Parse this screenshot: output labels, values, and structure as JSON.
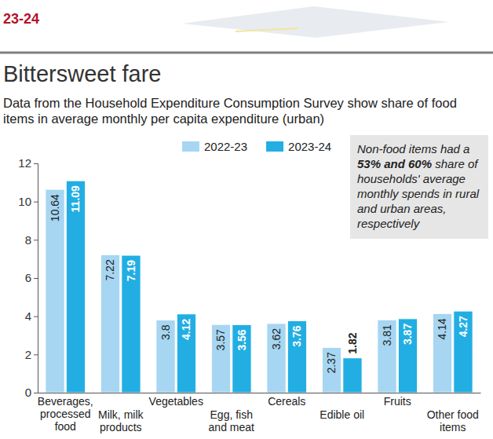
{
  "chart_data": {
    "type": "bar",
    "header": "23-24",
    "title": "Bittersweet fare",
    "subtitle": "Data from the Household Expenditure Consumption Survey show share of food items in average monthly per capita expenditure (urban)",
    "annotation": [
      "Non-food items had a",
      "53% and 60%",
      "share of households' average monthly spends in rural and urban areas, respectively"
    ],
    "categories": [
      "Beverages, processed food",
      "Milk, milk products",
      "Vegetables",
      "Egg, fish and meat",
      "Cereals",
      "Edible oil",
      "Fruits",
      "Other food items"
    ],
    "series": [
      {
        "name": "2022-23",
        "color": "#a6d6f2",
        "values": [
          10.64,
          7.22,
          3.8,
          3.57,
          3.62,
          2.37,
          3.81,
          4.14
        ]
      },
      {
        "name": "2023-24",
        "color": "#22aee3",
        "values": [
          11.09,
          7.19,
          4.12,
          3.56,
          3.76,
          1.82,
          3.87,
          4.27
        ]
      }
    ],
    "ylim": [
      0,
      12
    ],
    "yticks": [
      0,
      2,
      4,
      6,
      8,
      10,
      12
    ],
    "grid": false,
    "legend": "top",
    "data_labels": true
  }
}
